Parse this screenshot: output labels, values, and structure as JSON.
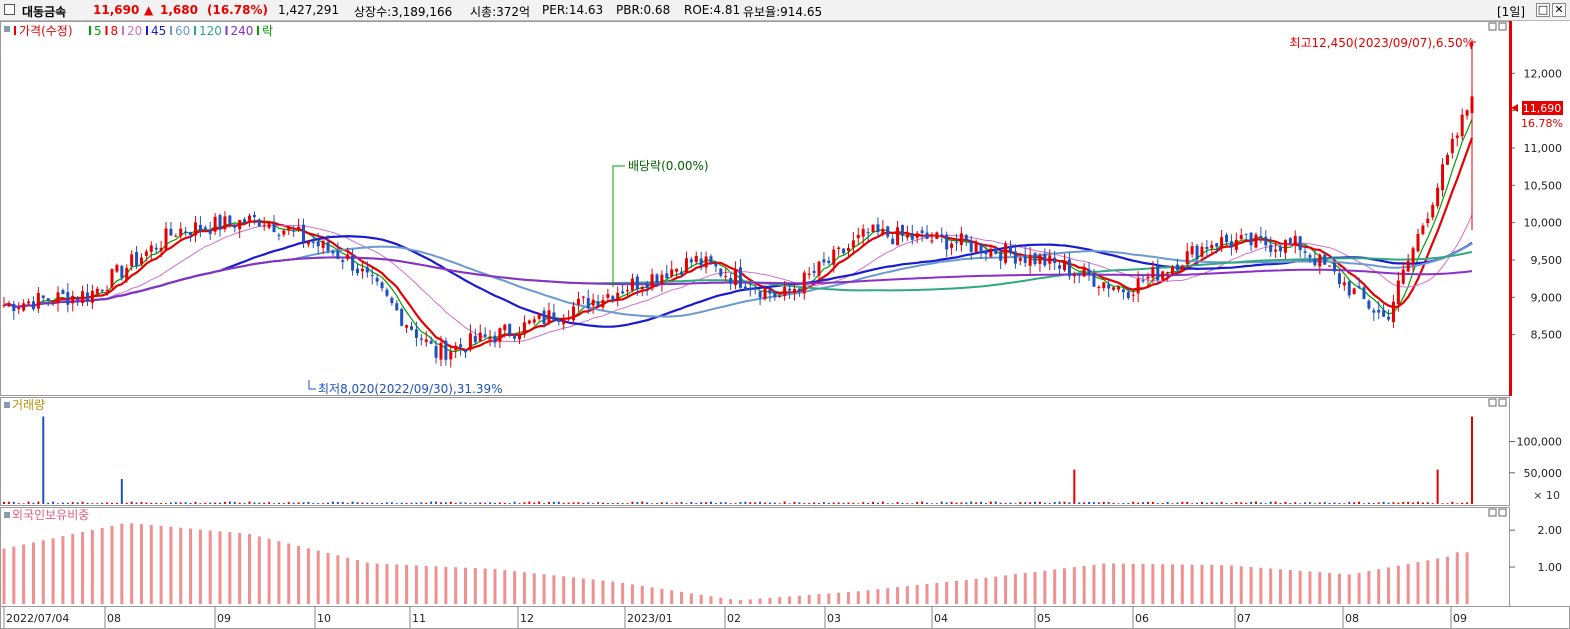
{
  "header": {
    "stock_name": "대동금속",
    "price": "11,690",
    "change_arrow": "▲",
    "change": "1,680",
    "change_pct": "(16.78%)",
    "volume": "1,427,291",
    "shares": "상장수:3,189,166",
    "market_cap": "시총:372억",
    "per": "PER:14.63",
    "pbr": "PBR:0.68",
    "roe": "ROE:4.81",
    "retention": "유보율:914.65",
    "period": "[1일]",
    "colors": {
      "up": "#e60000",
      "down": "#0040c0"
    }
  },
  "price_panel": {
    "legend": [
      {
        "text": "가격(수정)",
        "color": "#e60000"
      },
      {
        "text": "5",
        "color": "#00a000"
      },
      {
        "text": "8",
        "color": "#e60000"
      },
      {
        "text": "20",
        "color": "#d070d0"
      },
      {
        "text": "45",
        "color": "#1a1ad0"
      },
      {
        "text": "60",
        "color": "#6a9ad0"
      },
      {
        "text": "120",
        "color": "#30a880"
      },
      {
        "text": "240",
        "color": "#8a30c8"
      },
      {
        "text": "락",
        "color": "#00a000"
      }
    ],
    "high_annotation": "최고12,450(2023/09/07),6.50%",
    "low_annotation": "최저8,020(2022/09/30),31.39%",
    "dividend_annotation": "배당락(0.00%)",
    "current_price_tag": "11,690",
    "current_change_tag": "16.78%"
  },
  "volume_panel": {
    "title": "거래량",
    "multiplier": "× 10"
  },
  "foreign_panel": {
    "title": "외국인보유비중"
  },
  "chart_data": [
    {
      "type": "candlestick",
      "title": "가격(수정)",
      "yticks": [
        "12,000",
        "11,500",
        "11,000",
        "10,500",
        "10,000",
        "9,500",
        "9,000",
        "8,500"
      ],
      "ylim": [
        8000,
        12700
      ],
      "approx_close_path": [
        {
          "date": "2022/07/04",
          "value": 8900
        },
        {
          "date": "2022/07",
          "value": 9050
        },
        {
          "date": "2022/08",
          "value": 9900
        },
        {
          "date": "2022/08",
          "value": 10050
        },
        {
          "date": "2022/09",
          "value": 9500
        },
        {
          "date": "2022/09/30",
          "value": 8250
        },
        {
          "date": "2022/10",
          "value": 8600
        },
        {
          "date": "2022/11",
          "value": 9050
        },
        {
          "date": "2022/12",
          "value": 9500
        },
        {
          "date": "2023/01",
          "value": 9000
        },
        {
          "date": "2023/02",
          "value": 9850
        },
        {
          "date": "2023/03",
          "value": 9750
        },
        {
          "date": "2023/04",
          "value": 9500
        },
        {
          "date": "2023/05",
          "value": 9100
        },
        {
          "date": "2023/06",
          "value": 9750
        },
        {
          "date": "2023/07",
          "value": 9700
        },
        {
          "date": "2023/08",
          "value": 8700
        },
        {
          "date": "2023/09",
          "value": 11690
        }
      ],
      "moving_averages": [
        "5",
        "8",
        "20",
        "45",
        "60",
        "120",
        "240"
      ],
      "high": {
        "value": 12450,
        "date": "2023/09/07"
      },
      "low": {
        "value": 8020,
        "date": "2022/09/30"
      },
      "last": 11690
    },
    {
      "type": "bar",
      "title": "거래량",
      "yticks": [
        "100,000",
        "50,000"
      ],
      "unit": "× 10",
      "ylim": [
        0,
        160000
      ],
      "spikes": [
        {
          "date": "2022/07",
          "value": 140000
        },
        {
          "date": "2022/08",
          "value": 40000
        },
        {
          "date": "2023/05",
          "value": 55000
        },
        {
          "date": "2023/09",
          "value": 55000
        },
        {
          "date": "2023/09",
          "value": 140000
        }
      ]
    },
    {
      "type": "bar",
      "title": "외국인보유비중",
      "yticks": [
        "2.00",
        "1.00"
      ],
      "ylim": [
        0,
        2.6
      ],
      "approx_path": [
        {
          "date": "2022/07",
          "value": 1.5
        },
        {
          "date": "2022/08",
          "value": 2.2
        },
        {
          "date": "2022/09",
          "value": 1.9
        },
        {
          "date": "2022/10",
          "value": 1.1
        },
        {
          "date": "2022/12",
          "value": 0.95
        },
        {
          "date": "2023/01",
          "value": 0.6
        },
        {
          "date": "2023/03",
          "value": 0.1
        },
        {
          "date": "2023/04",
          "value": 0.35
        },
        {
          "date": "2023/05",
          "value": 0.7
        },
        {
          "date": "2023/06",
          "value": 1.1
        },
        {
          "date": "2023/07",
          "value": 1.05
        },
        {
          "date": "2023/08",
          "value": 0.8
        },
        {
          "date": "2023/09",
          "value": 1.4
        }
      ]
    }
  ],
  "x_axis": {
    "labels": [
      "2022/07/04",
      "08",
      "09",
      "10",
      "11",
      "12",
      "2023/01",
      "02",
      "03",
      "04",
      "05",
      "06",
      "07",
      "08",
      "09"
    ]
  }
}
